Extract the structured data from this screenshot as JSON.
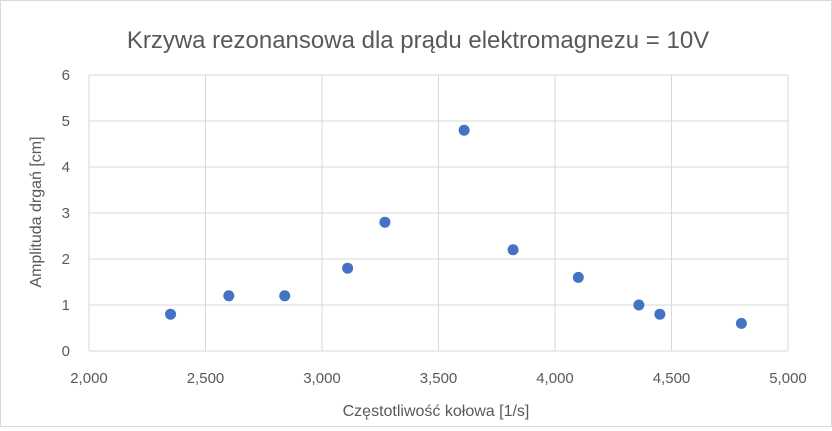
{
  "chart_data": {
    "type": "scatter",
    "title": "Krzywa rezonansowa dla prądu elektromagnezu = 10V",
    "xlabel": "Częstotliwość kołowa [1/s]",
    "ylabel": "Amplituda drgań [cm]",
    "xlim": [
      2000,
      5000
    ],
    "ylim": [
      0,
      6
    ],
    "x_ticks": [
      "2,000",
      "2,500",
      "3,000",
      "3,500",
      "4,000",
      "4,500",
      "5,000"
    ],
    "y_ticks": [
      "0",
      "1",
      "2",
      "3",
      "4",
      "5",
      "6"
    ],
    "grid": true,
    "marker_color": "#4472c4",
    "points": [
      {
        "x": 2350,
        "y": 0.8
      },
      {
        "x": 2600,
        "y": 1.2
      },
      {
        "x": 2840,
        "y": 1.2
      },
      {
        "x": 3110,
        "y": 1.8
      },
      {
        "x": 3270,
        "y": 2.8
      },
      {
        "x": 3610,
        "y": 4.8
      },
      {
        "x": 3820,
        "y": 2.2
      },
      {
        "x": 4100,
        "y": 1.6
      },
      {
        "x": 4360,
        "y": 1.0
      },
      {
        "x": 4450,
        "y": 0.8
      },
      {
        "x": 4800,
        "y": 0.6
      }
    ]
  }
}
